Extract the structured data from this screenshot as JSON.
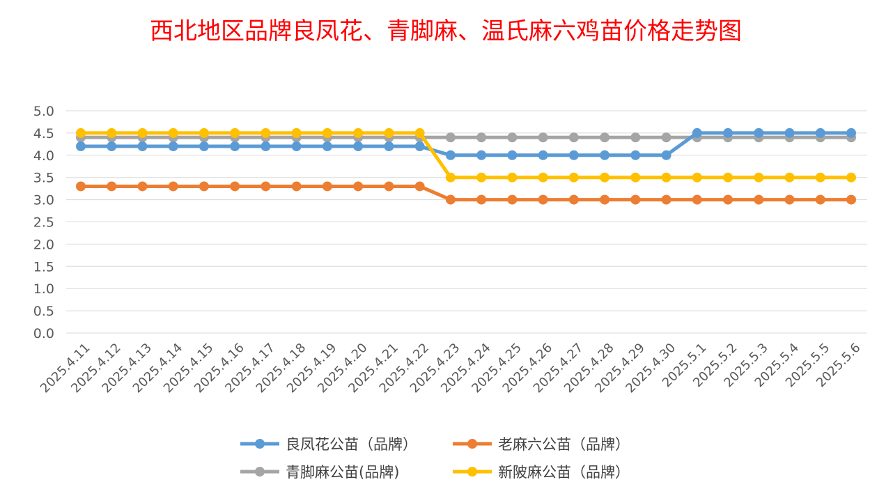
{
  "chart_data": {
    "type": "line",
    "title": "西北地区品牌良凤花、青脚麻、温氏麻六鸡苗价格走势图",
    "xlabel": "",
    "ylabel": "",
    "ylim": [
      0,
      5
    ],
    "yticks": [
      "5.0",
      "4.5",
      "4.0",
      "3.5",
      "3.0",
      "2.5",
      "2.0",
      "1.5",
      "1.0",
      "0.5",
      "0.0"
    ],
    "grid": true,
    "legend_position": "bottom",
    "categories": [
      "2025.4.11",
      "2025.4.12",
      "2025.4.13",
      "2025.4.14",
      "2025.4.15",
      "2025.4.16",
      "2025.4.17",
      "2025.4.18",
      "2025.4.19",
      "2025.4.20",
      "2025.4.21",
      "2025.4.22",
      "2025.4.23",
      "2025.4.24",
      "2025.4.25",
      "2025.4.26",
      "2025.4.27",
      "2025.4.28",
      "2025.4.29",
      "2025.4.30",
      "2025.5.1",
      "2025.5.2",
      "2025.5.3",
      "2025.5.4",
      "2025.5.5",
      "2025.5.6"
    ],
    "series": [
      {
        "name": "良凤花公苗（品牌）",
        "color": "#5b9bd5",
        "values": [
          4.2,
          4.2,
          4.2,
          4.2,
          4.2,
          4.2,
          4.2,
          4.2,
          4.2,
          4.2,
          4.2,
          4.2,
          4.0,
          4.0,
          4.0,
          4.0,
          4.0,
          4.0,
          4.0,
          4.0,
          4.5,
          4.5,
          4.5,
          4.5,
          4.5,
          4.5
        ]
      },
      {
        "name": "老麻六公苗（品牌）",
        "color": "#ed7d31",
        "values": [
          3.3,
          3.3,
          3.3,
          3.3,
          3.3,
          3.3,
          3.3,
          3.3,
          3.3,
          3.3,
          3.3,
          3.3,
          3.0,
          3.0,
          3.0,
          3.0,
          3.0,
          3.0,
          3.0,
          3.0,
          3.0,
          3.0,
          3.0,
          3.0,
          3.0,
          3.0
        ]
      },
      {
        "name": "青脚麻公苗(品牌)",
        "color": "#a5a5a5",
        "values": [
          4.4,
          4.4,
          4.4,
          4.4,
          4.4,
          4.4,
          4.4,
          4.4,
          4.4,
          4.4,
          4.4,
          4.4,
          4.4,
          4.4,
          4.4,
          4.4,
          4.4,
          4.4,
          4.4,
          4.4,
          4.4,
          4.4,
          4.4,
          4.4,
          4.4,
          4.4
        ]
      },
      {
        "name": "新陂麻公苗（品牌）",
        "color": "#ffc000",
        "values": [
          4.5,
          4.5,
          4.5,
          4.5,
          4.5,
          4.5,
          4.5,
          4.5,
          4.5,
          4.5,
          4.5,
          4.5,
          3.5,
          3.5,
          3.5,
          3.5,
          3.5,
          3.5,
          3.5,
          3.5,
          3.5,
          3.5,
          3.5,
          3.5,
          3.5,
          3.5
        ]
      }
    ],
    "draw_order": [
      2,
      0,
      1,
      3
    ]
  }
}
